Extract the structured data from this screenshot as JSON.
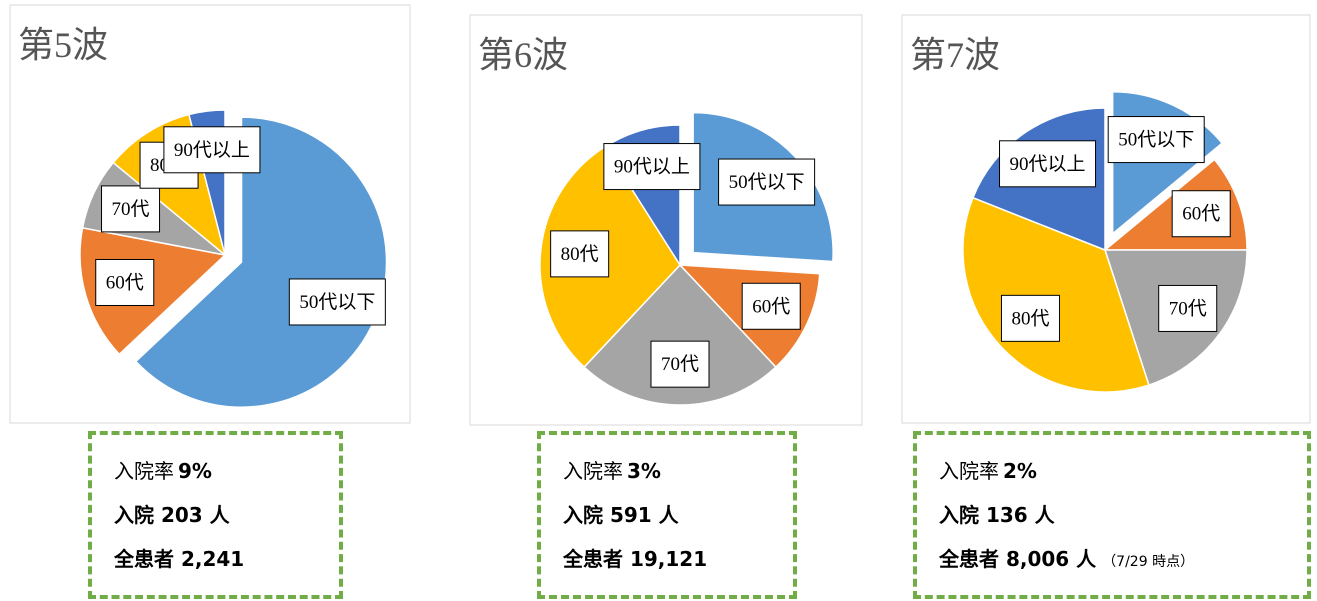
{
  "chart_data": [
    {
      "type": "pie",
      "title": "第5波",
      "categories": [
        "50代以下",
        "60代",
        "70代",
        "80代",
        "90代以上"
      ],
      "values": [
        63,
        15,
        8,
        10,
        4
      ],
      "colors": [
        "#5b9bd5",
        "#ed7d31",
        "#a5a5a5",
        "#ffc000",
        "#4472c4"
      ]
    },
    {
      "type": "pie",
      "title": "第6波",
      "categories": [
        "50代以下",
        "60代",
        "70代",
        "80代",
        "90代以上"
      ],
      "values": [
        26,
        12,
        24,
        29,
        9
      ],
      "colors": [
        "#5b9bd5",
        "#ed7d31",
        "#a5a5a5",
        "#ffc000",
        "#4472c4"
      ]
    },
    {
      "type": "pie",
      "title": "第7波",
      "categories": [
        "50代以下",
        "60代",
        "70代",
        "80代",
        "90代以上"
      ],
      "values": [
        14,
        11,
        20,
        36,
        19
      ],
      "colors": [
        "#5b9bd5",
        "#ed7d31",
        "#a5a5a5",
        "#ffc000",
        "#4472c4"
      ]
    }
  ],
  "summaries": [
    [
      [
        "入院率",
        "9%"
      ],
      [
        "入院 203 人"
      ],
      [
        "全患者 2,241"
      ]
    ],
    [
      [
        "入院率",
        "3%"
      ],
      [
        "入院 591 人"
      ],
      [
        "全患者 19,121"
      ]
    ],
    [
      [
        "入院率",
        "2%"
      ],
      [
        "入院 136 人"
      ],
      [
        "全患者 8,006 人",
        "（7/29 時点）"
      ]
    ]
  ]
}
